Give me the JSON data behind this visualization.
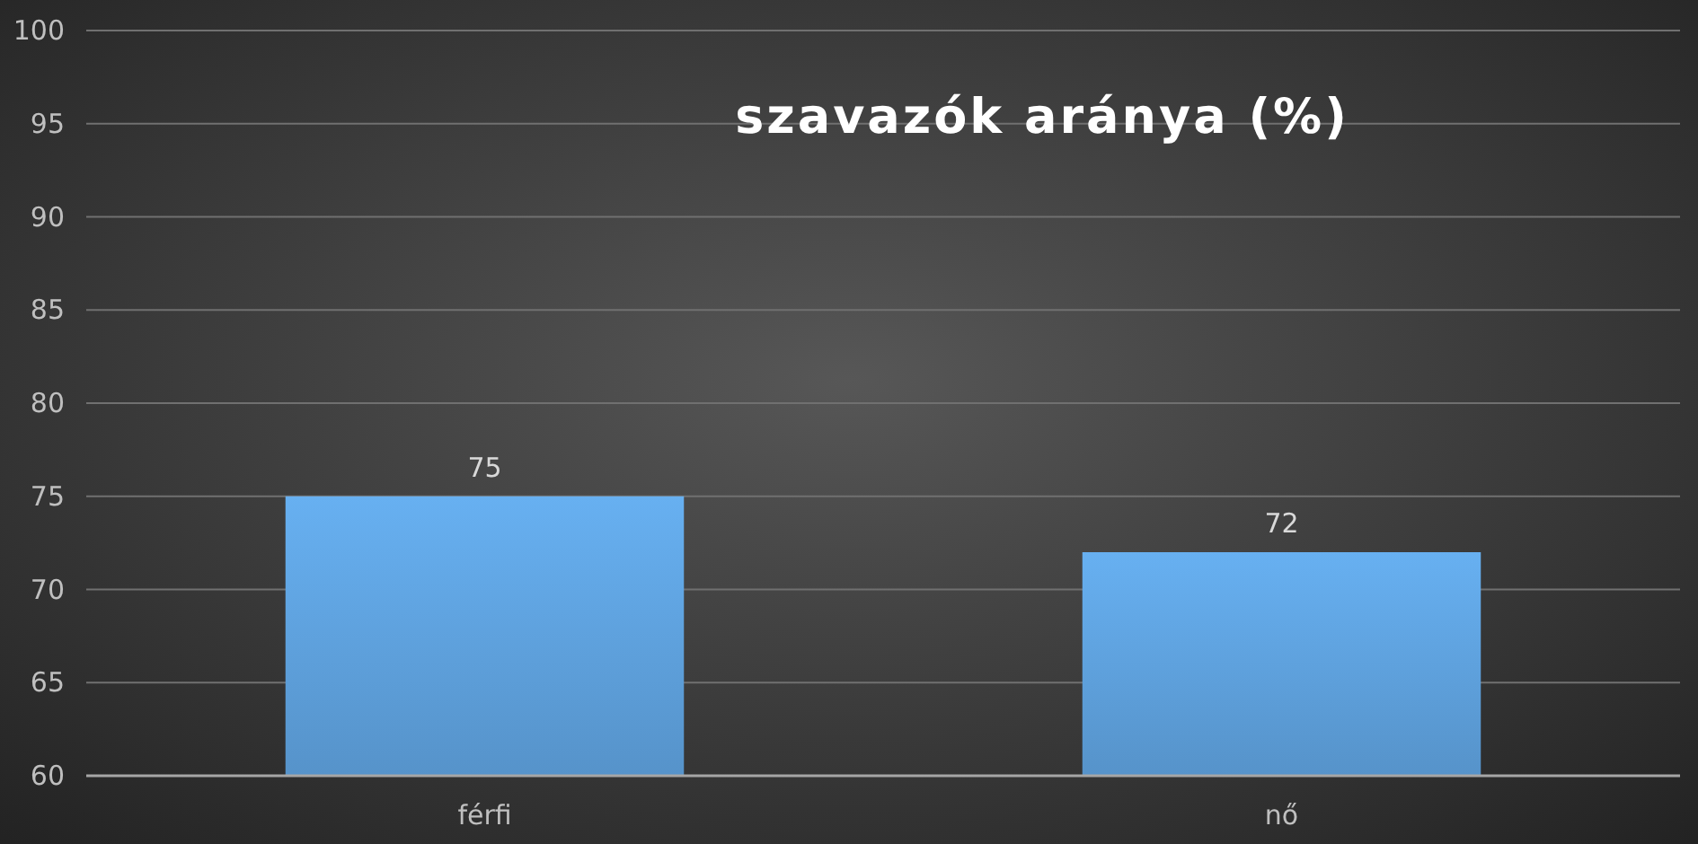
{
  "chart_data": {
    "type": "bar",
    "title": "szavazók aránya (%)",
    "categories": [
      "férfi",
      "nő"
    ],
    "values": [
      75,
      72
    ],
    "color": "#5b9bd5",
    "ylim": [
      60,
      100
    ],
    "yticks": [
      60,
      65,
      70,
      75,
      80,
      85,
      90,
      95,
      100
    ],
    "grid": "y",
    "data_labels": true
  }
}
